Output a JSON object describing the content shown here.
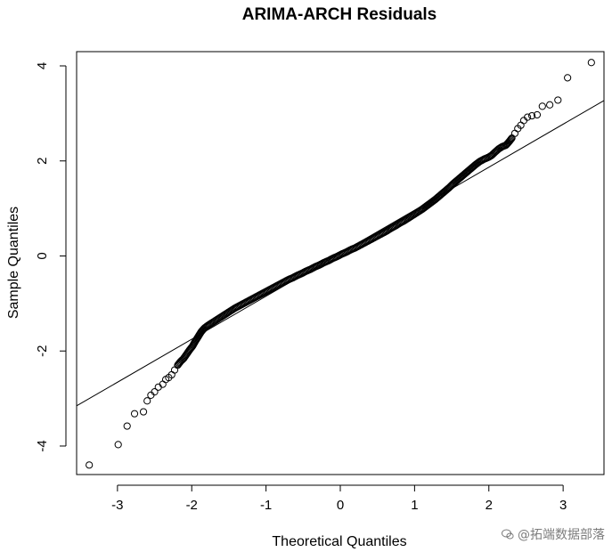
{
  "chart_data": {
    "type": "scatter",
    "title": "ARIMA-ARCH Residuals",
    "xlabel": "Theoretical Quantiles",
    "ylabel": "Sample Quantiles",
    "xlim": [
      -3.55,
      3.55
    ],
    "ylim": [
      -4.6,
      4.3
    ],
    "xticks": [
      -3,
      -2,
      -1,
      0,
      1,
      2,
      3
    ],
    "yticks": [
      -4,
      -2,
      0,
      2,
      4
    ],
    "xtick_labels": [
      "-3",
      "-2",
      "-1",
      "0",
      "1",
      "2",
      "3"
    ],
    "ytick_labels": [
      "-4",
      "-2",
      "0",
      "2",
      "4"
    ],
    "reference_line": {
      "slope": 0.905,
      "intercept": 0.058
    },
    "points": {
      "x": [
        -3.38,
        -2.99,
        -2.87,
        -2.77,
        -2.65,
        -2.6,
        -2.55,
        -2.5,
        -2.45,
        -2.39,
        -2.35,
        -2.31,
        -2.27,
        -2.23,
        -2.19,
        -2.15,
        -2.11,
        -2.07,
        -2.03,
        -1.99,
        -1.95,
        -1.91,
        -1.87,
        -1.83,
        -1.78,
        -1.72,
        -1.66,
        -1.6,
        -1.54,
        -1.48,
        -1.42,
        -1.36,
        -1.3,
        -1.24,
        -1.18,
        -1.12,
        -1.06,
        -1.0,
        -0.94,
        -0.88,
        -0.82,
        -0.76,
        -0.7,
        -0.64,
        -0.58,
        -0.52,
        -0.46,
        -0.4,
        -0.34,
        -0.28,
        -0.22,
        -0.16,
        -0.1,
        -0.04,
        0.02,
        0.08,
        0.14,
        0.2,
        0.26,
        0.32,
        0.38,
        0.44,
        0.5,
        0.56,
        0.62,
        0.68,
        0.74,
        0.8,
        0.86,
        0.92,
        0.98,
        1.04,
        1.1,
        1.16,
        1.22,
        1.28,
        1.34,
        1.4,
        1.46,
        1.52,
        1.58,
        1.64,
        1.7,
        1.76,
        1.82,
        1.88,
        1.94,
        2.0,
        2.04,
        2.08,
        2.13,
        2.18,
        2.23,
        2.27,
        2.31,
        2.35,
        2.39,
        2.43,
        2.47,
        2.52,
        2.58,
        2.65,
        2.72,
        2.82,
        2.93,
        3.06,
        3.38
      ],
      "y": [
        -4.4,
        -3.97,
        -3.58,
        -3.32,
        -3.28,
        -3.05,
        -2.93,
        -2.86,
        -2.76,
        -2.7,
        -2.6,
        -2.56,
        -2.5,
        -2.4,
        -2.3,
        -2.22,
        -2.16,
        -2.07,
        -1.98,
        -1.9,
        -1.79,
        -1.69,
        -1.59,
        -1.52,
        -1.46,
        -1.4,
        -1.34,
        -1.28,
        -1.22,
        -1.16,
        -1.1,
        -1.05,
        -1.0,
        -0.95,
        -0.9,
        -0.85,
        -0.8,
        -0.75,
        -0.7,
        -0.65,
        -0.6,
        -0.55,
        -0.5,
        -0.46,
        -0.41,
        -0.37,
        -0.32,
        -0.28,
        -0.23,
        -0.19,
        -0.14,
        -0.1,
        -0.05,
        -0.01,
        0.04,
        0.08,
        0.13,
        0.17,
        0.22,
        0.27,
        0.32,
        0.37,
        0.42,
        0.47,
        0.52,
        0.58,
        0.63,
        0.69,
        0.74,
        0.8,
        0.86,
        0.92,
        0.98,
        1.05,
        1.12,
        1.19,
        1.27,
        1.35,
        1.43,
        1.52,
        1.6,
        1.68,
        1.76,
        1.84,
        1.92,
        1.99,
        2.04,
        2.08,
        2.12,
        2.18,
        2.25,
        2.3,
        2.33,
        2.4,
        2.48,
        2.58,
        2.68,
        2.75,
        2.85,
        2.92,
        2.95,
        2.97,
        3.15,
        3.18,
        3.28,
        3.75,
        4.07
      ]
    }
  },
  "watermark": {
    "text": "@拓端数据部落"
  }
}
